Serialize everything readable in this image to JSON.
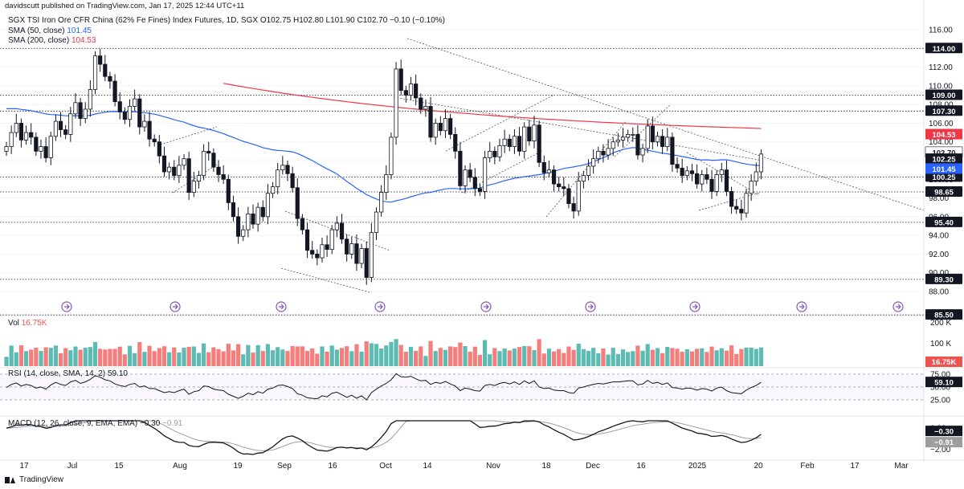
{
  "publisher": "davidscutt published on TradingView.com, Jan 17, 2025 12:44 UTC+11",
  "footer_brand": "TradingView",
  "legend": {
    "title": "SGX TSI Iron Ore CFR China (62% Fe Fines) Index Futures, 1D, SGX",
    "ohlc": "O102.75  H102.80  L101.90  C102.70  −0.10 (−0.10%)",
    "sma50_label": "SMA (50, close)",
    "sma50_value": "101.45",
    "sma200_label": "SMA (200, close)",
    "sma200_value": "104.53",
    "vol_label": "Vol",
    "vol_value": "16.75K",
    "rsi_label": "RSI (14, close, SMA, 14, 2)",
    "rsi_value": "59.10",
    "macd_label": "MACD (12, 26, close, 9, EMA, EMA)",
    "macd_value1": "−0.30",
    "macd_value2": "−0.91"
  },
  "colors": {
    "up": "#ffffff",
    "down": "#131722",
    "sma50": "#2962ff",
    "sma200": "#f23645",
    "vol_up": "#26a69a",
    "vol_down": "#ef5350",
    "rsi": "#131722",
    "macd": "#131722",
    "signal": "#9e9e9e"
  },
  "chart_data": {
    "type": "candlestick",
    "y_ticks": [
      88,
      90,
      92,
      94,
      96,
      98,
      100,
      102,
      104,
      106,
      108,
      110,
      112,
      114,
      116
    ],
    "y_tick_labels": [
      "88.00",
      "90.00",
      "92.00",
      "94.00",
      "96.00",
      "98.00",
      "100.00",
      "102.00",
      "104.00",
      "106.00",
      "108.00",
      "110.00",
      "112.00",
      "114.00",
      "116.00"
    ],
    "ylim": [
      85.5,
      117
    ],
    "x_ticks": [
      "17",
      "Jul",
      "15",
      "Aug",
      "19",
      "Sep",
      "16",
      "Oct",
      "14",
      "Nov",
      "18",
      "Dec",
      "16",
      "2025",
      "20",
      "Feb",
      "17",
      "Mar"
    ],
    "levels": [
      114.0,
      109.0,
      107.3,
      100.25,
      98.65,
      95.4,
      89.3,
      85.5
    ],
    "level_labels": [
      "114.00",
      "109.00",
      "107.30",
      "100.25",
      "98.65",
      "95.40",
      "89.30",
      "85.50"
    ],
    "price_tags": [
      {
        "label": "104.53",
        "value": 104.53,
        "style": "sma200"
      },
      {
        "label": "102.70",
        "value": 102.7,
        "style": "last"
      },
      {
        "label": "102.25",
        "value": 102.25,
        "style": "dark"
      },
      {
        "label": "101.45",
        "value": 101.45,
        "style": "sma50"
      }
    ],
    "closes": [
      103.5,
      105.0,
      106.0,
      104.2,
      105.0,
      104.5,
      103.0,
      103.5,
      102.3,
      104.6,
      106.2,
      105.3,
      104.8,
      107.0,
      108.2,
      106.5,
      107.5,
      109.6,
      113.2,
      112.3,
      111.0,
      110.5,
      108.3,
      107.2,
      106.4,
      107.8,
      108.6,
      105.6,
      106.2,
      104.3,
      104.0,
      102.5,
      100.8,
      101.3,
      100.4,
      101.5,
      102.2,
      98.6,
      99.8,
      100.4,
      103.0,
      102.8,
      101.3,
      100.5,
      100.0,
      97.5,
      96.0,
      93.9,
      94.6,
      96.3,
      95.2,
      97.0,
      96.0,
      98.5,
      99.2,
      101.0,
      101.5,
      100.6,
      99.1,
      95.8,
      94.6,
      92.4,
      92.0,
      91.6,
      93.0,
      92.5,
      94.6,
      95.3,
      93.6,
      92.0,
      93.1,
      91.0,
      92.6,
      89.5,
      94.3,
      96.5,
      98.6,
      100.5,
      104.5,
      111.8,
      109.5,
      109.0,
      110.2,
      108.7,
      107.5,
      107.8,
      104.5,
      106.0,
      105.2,
      106.5,
      104.8,
      103.0,
      99.3,
      101.0,
      100.2,
      99.0,
      98.7,
      102.3,
      103.0,
      102.4,
      103.6,
      104.3,
      103.5,
      104.6,
      103.0,
      105.6,
      104.1,
      105.8,
      101.8,
      100.7,
      101.0,
      99.5,
      99.2,
      99.0,
      97.4,
      96.6,
      99.8,
      100.4,
      101.4,
      102.2,
      103.0,
      102.6,
      103.3,
      104.0,
      104.2,
      104.5,
      104.8,
      104.8,
      102.6,
      103.3,
      105.7,
      104.0,
      104.6,
      103.5,
      104.5,
      101.6,
      101.2,
      100.4,
      100.9,
      100.6,
      99.5,
      100.5,
      100.0,
      98.7,
      100.5,
      101.0,
      98.7,
      97.1,
      96.8,
      96.4,
      98.5,
      99.8,
      100.8,
      102.7
    ],
    "vol": [
      {
        "max_label": "200 K",
        "mid_label": "100 K"
      }
    ],
    "rsi_levels": [
      "75.00",
      "50.00",
      "25.00"
    ],
    "rsi_values": [
      49,
      55,
      58,
      52,
      55,
      53,
      48,
      50,
      46,
      54,
      59,
      55,
      53,
      60,
      63,
      57,
      60,
      65,
      72,
      69,
      64,
      62,
      56,
      53,
      51,
      55,
      57,
      50,
      52,
      47,
      47,
      43,
      39,
      41,
      39,
      43,
      46,
      36,
      41,
      43,
      52,
      51,
      46,
      44,
      43,
      36,
      32,
      28,
      32,
      38,
      35,
      41,
      38,
      46,
      48,
      53,
      54,
      51,
      47,
      37,
      34,
      29,
      28,
      27,
      33,
      31,
      38,
      40,
      35,
      30,
      34,
      28,
      33,
      25,
      39,
      46,
      52,
      57,
      64,
      76,
      70,
      69,
      71,
      66,
      62,
      63,
      55,
      59,
      57,
      61,
      56,
      52,
      43,
      48,
      46,
      43,
      42,
      53,
      55,
      53,
      57,
      59,
      56,
      60,
      55,
      62,
      57,
      62,
      50,
      47,
      48,
      44,
      43,
      43,
      39,
      38,
      48,
      50,
      53,
      55,
      57,
      56,
      58,
      60,
      60,
      61,
      62,
      62,
      54,
      56,
      63,
      57,
      59,
      55,
      58,
      49,
      48,
      46,
      48,
      47,
      44,
      47,
      46,
      42,
      48,
      50,
      43,
      39,
      38,
      37,
      44,
      49,
      53,
      59
    ],
    "macd_ticks": [
      "0.00",
      "−2.00"
    ],
    "macd_ylim": [
      -2.8,
      0.7
    ]
  }
}
